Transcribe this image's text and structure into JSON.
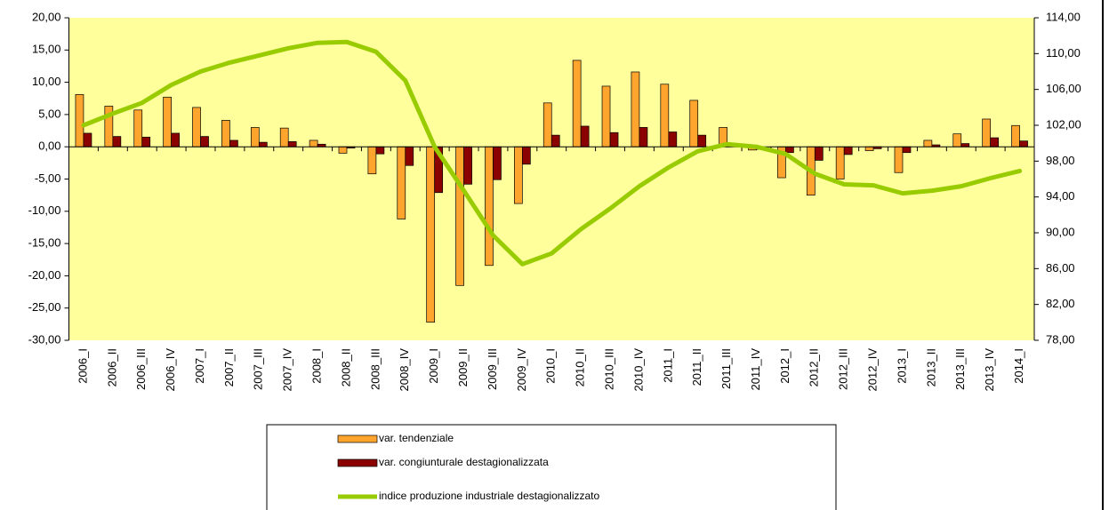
{
  "chart_data": {
    "type": "bar-line",
    "categories": [
      "2006_I",
      "2006_II",
      "2006_III",
      "2006_IV",
      "2007_I",
      "2007_II",
      "2007_III",
      "2007_IV",
      "2008_I",
      "2008_II",
      "2008_III",
      "2008_IV",
      "2009_I",
      "2009_II",
      "2009_III",
      "2009_IV",
      "2010_I",
      "2010_II",
      "2010_III",
      "2010_IV",
      "2011_I",
      "2011_II",
      "2011_III",
      "2011_IV",
      "2012_I",
      "2012_II",
      "2012_III",
      "2012_IV",
      "2013_I",
      "2013_II",
      "2013_III",
      "2013_IV",
      "2014_I"
    ],
    "series": [
      {
        "name": "var. tendenziale",
        "type": "bar",
        "color": "#ffa52e",
        "values": [
          8.1,
          6.3,
          5.7,
          7.7,
          6.1,
          4.1,
          3.0,
          2.9,
          1.0,
          -1.0,
          -4.2,
          -11.2,
          -27.2,
          -21.5,
          -18.4,
          -8.8,
          6.8,
          13.4,
          9.4,
          11.6,
          9.7,
          7.2,
          3.0,
          -0.5,
          -4.8,
          -7.5,
          -5.0,
          -0.6,
          -4.0,
          1.0,
          2.0,
          4.3,
          3.3
        ]
      },
      {
        "name": "var. congiunturale destagionalizzata",
        "type": "bar",
        "color": "#8b0000",
        "values": [
          2.1,
          1.6,
          1.5,
          2.1,
          1.6,
          1.0,
          0.7,
          0.8,
          0.4,
          -0.2,
          -1.1,
          -2.9,
          -7.1,
          -5.8,
          -5.1,
          -2.7,
          1.8,
          3.2,
          2.2,
          3.0,
          2.3,
          1.8,
          0.1,
          -0.4,
          -0.9,
          -2.1,
          -1.2,
          -0.3,
          -0.9,
          0.3,
          0.5,
          1.4,
          0.9
        ]
      },
      {
        "name": "indice produzione industriale destagionalizzato",
        "type": "line",
        "axis": "y2",
        "color": "#99cc00",
        "values": [
          102.0,
          103.3,
          104.5,
          106.5,
          108.0,
          109.0,
          109.8,
          110.6,
          111.2,
          111.3,
          110.2,
          107.0,
          99.6,
          94.7,
          89.7,
          86.5,
          87.7,
          90.4,
          92.7,
          95.2,
          97.3,
          99.1,
          99.9,
          99.6,
          98.8,
          96.6,
          95.4,
          95.3,
          94.4,
          94.7,
          95.2,
          96.1,
          96.9
        ]
      }
    ],
    "ylim": [
      -30,
      20
    ],
    "yticks": [
      {
        "value": -30,
        "label": "-30,00"
      },
      {
        "value": -25,
        "label": "-25,00"
      },
      {
        "value": -20,
        "label": "-20,00"
      },
      {
        "value": -15,
        "label": "-15,00"
      },
      {
        "value": -10,
        "label": "-10,00"
      },
      {
        "value": -5,
        "label": "-5,00"
      },
      {
        "value": 0,
        "label": "0,00"
      },
      {
        "value": 5,
        "label": "5,00"
      },
      {
        "value": 10,
        "label": "10,00"
      },
      {
        "value": 15,
        "label": "15,00"
      },
      {
        "value": 20,
        "label": "20,00"
      }
    ],
    "y2lim": [
      78,
      114
    ],
    "y2ticks": [
      {
        "value": 78,
        "label": "78,00"
      },
      {
        "value": 82,
        "label": "82,00"
      },
      {
        "value": 86,
        "label": "86,00"
      },
      {
        "value": 90,
        "label": "90,00"
      },
      {
        "value": 94,
        "label": "94,00"
      },
      {
        "value": 98,
        "label": "98,00"
      },
      {
        "value": 102,
        "label": "102,00"
      },
      {
        "value": 106,
        "label": "106,00"
      },
      {
        "value": 110,
        "label": "110,00"
      },
      {
        "value": 114,
        "label": "114,00"
      }
    ],
    "background": "#ffff9c"
  }
}
